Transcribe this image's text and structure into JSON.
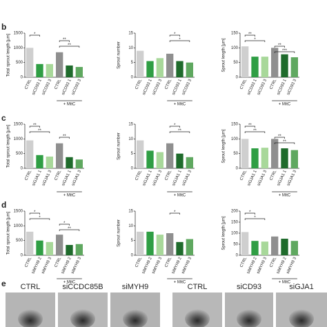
{
  "panel_labels": [
    "b",
    "c",
    "d",
    "e"
  ],
  "chart_data": [
    {
      "type": "bar",
      "ylabel": "Total sprout length [µm]",
      "categories": [
        "CTRL",
        "siCD93 1",
        "siCD93 3",
        "CTRL",
        "siCD93 1",
        "siCD93 3"
      ],
      "values": [
        1000,
        450,
        450,
        850,
        400,
        350
      ],
      "ylim": [
        0,
        1500
      ],
      "yticks": [
        0,
        500,
        1000,
        1500
      ],
      "annotation": "+ MitC",
      "colors": [
        "#cfcfcf",
        "#2f9e44",
        "#a8d89a",
        "#8f8f8f",
        "#1f6b2c",
        "#5fa860"
      ],
      "significance": [
        {
          "pair": [
            0,
            1
          ],
          "label": "*"
        },
        {
          "pair": [
            3,
            4
          ],
          "label": "**"
        },
        {
          "pair": [
            3,
            5
          ],
          "label": "**"
        }
      ]
    },
    {
      "type": "bar",
      "ylabel": "Sprout number",
      "categories": [
        "CTRL",
        "siCD93 1",
        "siCD93 3",
        "CTRL",
        "siCD93 1",
        "siCD93 3"
      ],
      "values": [
        9,
        5.5,
        6.5,
        8,
        5.5,
        5
      ],
      "ylim": [
        0,
        15
      ],
      "yticks": [
        0,
        5,
        10,
        15
      ],
      "annotation": "+ MitC",
      "colors": [
        "#cfcfcf",
        "#2f9e44",
        "#a8d89a",
        "#8f8f8f",
        "#1f6b2c",
        "#5fa860"
      ],
      "significance": [
        {
          "pair": [
            3,
            4
          ],
          "label": "*"
        },
        {
          "pair": [
            3,
            5
          ],
          "label": "*"
        }
      ]
    },
    {
      "type": "bar",
      "ylabel": "Sprout length [µm]",
      "categories": [
        "CTRL",
        "siCD93 1",
        "siCD93 3",
        "CTRL",
        "siCD93 1",
        "siCD93 3"
      ],
      "values": [
        105,
        70,
        70,
        100,
        78,
        68
      ],
      "ylim": [
        0,
        150
      ],
      "yticks": [
        0,
        50,
        100,
        150
      ],
      "annotation": "+ MitC",
      "colors": [
        "#cfcfcf",
        "#2f9e44",
        "#a8d89a",
        "#8f8f8f",
        "#1f6b2c",
        "#5fa860"
      ],
      "significance": [
        {
          "pair": [
            0,
            1
          ],
          "label": "**"
        },
        {
          "pair": [
            0,
            2
          ],
          "label": "*"
        },
        {
          "pair": [
            3,
            4
          ],
          "label": "**"
        },
        {
          "pair": [
            3,
            5
          ],
          "label": "***"
        }
      ]
    },
    {
      "type": "bar",
      "ylabel": "Total sprout length [µm]",
      "categories": [
        "CTRL",
        "siGJA1 1",
        "siGJA1 3",
        "CTRL",
        "siGJA1 1",
        "siGJA1 3"
      ],
      "values": [
        950,
        450,
        400,
        850,
        380,
        300
      ],
      "ylim": [
        0,
        1500
      ],
      "yticks": [
        0,
        500,
        1000,
        1500
      ],
      "annotation": "+ MitC",
      "colors": [
        "#cfcfcf",
        "#2f9e44",
        "#a8d89a",
        "#8f8f8f",
        "#1f6b2c",
        "#5fa860"
      ],
      "significance": [
        {
          "pair": [
            0,
            1
          ],
          "label": "**"
        },
        {
          "pair": [
            0,
            2
          ],
          "label": "**"
        },
        {
          "pair": [
            3,
            4
          ],
          "label": "**"
        }
      ]
    },
    {
      "type": "bar",
      "ylabel": "Sprout number",
      "categories": [
        "CTRL",
        "siGJA1 1",
        "siGJA1 3",
        "CTRL",
        "siGJA1 1",
        "siGJA1 3"
      ],
      "values": [
        9.5,
        6,
        5.5,
        8.5,
        5,
        3.8
      ],
      "ylim": [
        0,
        15
      ],
      "yticks": [
        0,
        5,
        10,
        15
      ],
      "annotation": "+ MitC",
      "colors": [
        "#cfcfcf",
        "#2f9e44",
        "#a8d89a",
        "#8f8f8f",
        "#1f6b2c",
        "#5fa860"
      ],
      "significance": [
        {
          "pair": [
            3,
            4
          ],
          "label": "*"
        },
        {
          "pair": [
            3,
            5
          ],
          "label": "**"
        }
      ]
    },
    {
      "type": "bar",
      "ylabel": "Sprout length [µm]",
      "categories": [
        "CTRL",
        "siGJA1 1",
        "siGJA1 3",
        "CTRL",
        "siGJA1 1",
        "siGJA1 3"
      ],
      "values": [
        100,
        68,
        70,
        100,
        68,
        62
      ],
      "ylim": [
        0,
        150
      ],
      "yticks": [
        0,
        50,
        100,
        150
      ],
      "annotation": "+ MitC",
      "colors": [
        "#cfcfcf",
        "#2f9e44",
        "#a8d89a",
        "#8f8f8f",
        "#1f6b2c",
        "#5fa860"
      ],
      "significance": [
        {
          "pair": [
            0,
            1
          ],
          "label": "**"
        },
        {
          "pair": [
            0,
            2
          ],
          "label": "**"
        },
        {
          "pair": [
            3,
            4
          ],
          "label": "**"
        },
        {
          "pair": [
            3,
            5
          ],
          "label": "**"
        }
      ]
    },
    {
      "type": "bar",
      "ylabel": "Total sprout length [µm]",
      "categories": [
        "CTRL",
        "siMYH9 2",
        "siMYH9 3",
        "CTRL",
        "siMYH9 2",
        "siMYH9 3"
      ],
      "values": [
        800,
        500,
        450,
        700,
        350,
        380
      ],
      "ylim": [
        0,
        1500
      ],
      "yticks": [
        0,
        500,
        1000,
        1500
      ],
      "annotation": "+ MitC",
      "colors": [
        "#cfcfcf",
        "#2f9e44",
        "#a8d89a",
        "#8f8f8f",
        "#1f6b2c",
        "#5fa860"
      ],
      "significance": [
        {
          "pair": [
            0,
            1
          ],
          "label": "*"
        },
        {
          "pair": [
            0,
            2
          ],
          "label": "*"
        },
        {
          "pair": [
            3,
            4
          ],
          "label": "*"
        },
        {
          "pair": [
            3,
            5
          ],
          "label": "**"
        }
      ]
    },
    {
      "type": "bar",
      "ylabel": "Sprout number",
      "categories": [
        "CTRL",
        "siMYH9 2",
        "siMYH9 3",
        "CTRL",
        "siMYH9 2",
        "siMYH9 3"
      ],
      "values": [
        8,
        8,
        7,
        7.5,
        4.5,
        5.5
      ],
      "ylim": [
        0,
        15
      ],
      "yticks": [
        0,
        5,
        10,
        15
      ],
      "annotation": "+ MitC",
      "colors": [
        "#cfcfcf",
        "#2f9e44",
        "#a8d89a",
        "#8f8f8f",
        "#1f6b2c",
        "#5fa860"
      ],
      "significance": [
        {
          "pair": [
            3,
            4
          ],
          "label": "*"
        }
      ]
    },
    {
      "type": "bar",
      "ylabel": "Sprout length [µm]",
      "categories": [
        "CTRL",
        "siMYH9 2",
        "siMYH9 3",
        "CTRL",
        "siMYH9 2",
        "siMYH9 3"
      ],
      "values": [
        105,
        65,
        62,
        85,
        75,
        65
      ],
      "ylim": [
        0,
        200
      ],
      "yticks": [
        0,
        50,
        100,
        150,
        200
      ],
      "annotation": "+ MitC",
      "colors": [
        "#cfcfcf",
        "#2f9e44",
        "#a8d89a",
        "#8f8f8f",
        "#1f6b2c",
        "#5fa860"
      ],
      "significance": [
        {
          "pair": [
            0,
            1
          ],
          "label": "*"
        },
        {
          "pair": [
            0,
            2
          ],
          "label": "*"
        }
      ]
    }
  ],
  "images": [
    "CTRL",
    "siCCDC85B",
    "siMYH9",
    "CTRL",
    "siCD93",
    "siGJA1"
  ]
}
